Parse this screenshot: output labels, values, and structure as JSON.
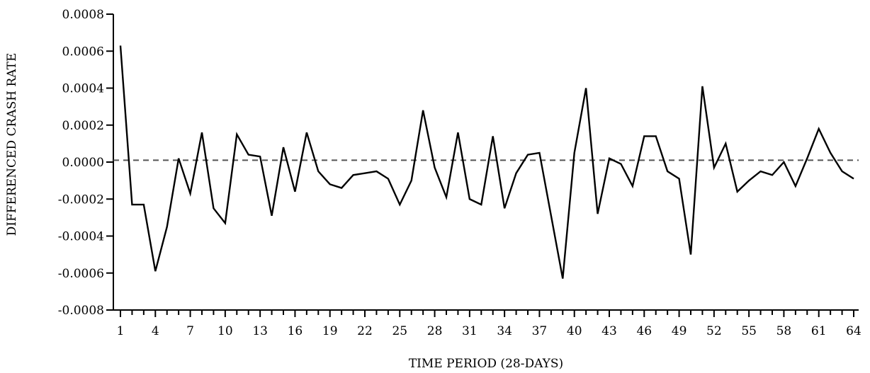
{
  "chart_data": {
    "type": "line",
    "title": "",
    "xlabel": "TIME PERIOD (28-DAYS)",
    "ylabel": "DIFFERENCED CRASH RATE",
    "xlim": [
      1,
      64
    ],
    "ylim": [
      -0.0008,
      0.0008
    ],
    "x_tick_labels": [
      "1",
      "4",
      "7",
      "10",
      "13",
      "16",
      "19",
      "22",
      "25",
      "28",
      "31",
      "34",
      "37",
      "40",
      "43",
      "46",
      "49",
      "52",
      "55",
      "58",
      "61",
      "64"
    ],
    "y_tick_labels": [
      "-0.0008",
      "-0.0006",
      "-0.0004",
      "-0.0002",
      "0.0000",
      "0.0002",
      "0.0004",
      "0.0006",
      "0.0008"
    ],
    "reference_line": {
      "y": 1e-05,
      "style": "dashed",
      "color": "#555555"
    },
    "series": [
      {
        "color": "#000000",
        "x": [
          1,
          2,
          3,
          4,
          5,
          6,
          7,
          8,
          9,
          10,
          11,
          12,
          13,
          14,
          15,
          16,
          17,
          18,
          19,
          20,
          21,
          22,
          23,
          24,
          25,
          26,
          27,
          28,
          29,
          30,
          31,
          32,
          33,
          34,
          35,
          36,
          37,
          38,
          39,
          40,
          41,
          42,
          43,
          44,
          45,
          46,
          47,
          48,
          49,
          50,
          51,
          52,
          53,
          54,
          55,
          56,
          57,
          58,
          59,
          60,
          61,
          62,
          63,
          64
        ],
        "values": [
          0.00063,
          -0.00023,
          -0.00023,
          -0.00059,
          -0.00035,
          2e-05,
          -0.00017,
          0.00016,
          -0.00025,
          -0.00033,
          0.00015,
          4e-05,
          3e-05,
          -0.00029,
          8e-05,
          -0.00016,
          0.00016,
          -5e-05,
          -0.00012,
          -0.00014,
          -7e-05,
          -6e-05,
          -5e-05,
          -9e-05,
          -0.00023,
          -0.0001,
          0.00028,
          -3e-05,
          -0.00019,
          0.00016,
          -0.0002,
          -0.00023,
          0.00014,
          -0.00025,
          -6e-05,
          4e-05,
          5e-05,
          -0.00029,
          -0.00063,
          5e-05,
          0.0004,
          -0.00028,
          2e-05,
          -1e-05,
          -0.00013,
          0.00014,
          0.00014,
          -5e-05,
          -9e-05,
          -0.0005,
          0.00041,
          -3e-05,
          0.0001,
          -0.00016,
          -0.0001,
          -5e-05,
          -7e-05,
          0.0,
          -0.00013,
          2e-05,
          0.00018,
          5e-05,
          -5e-05,
          -9e-05
        ]
      }
    ]
  }
}
